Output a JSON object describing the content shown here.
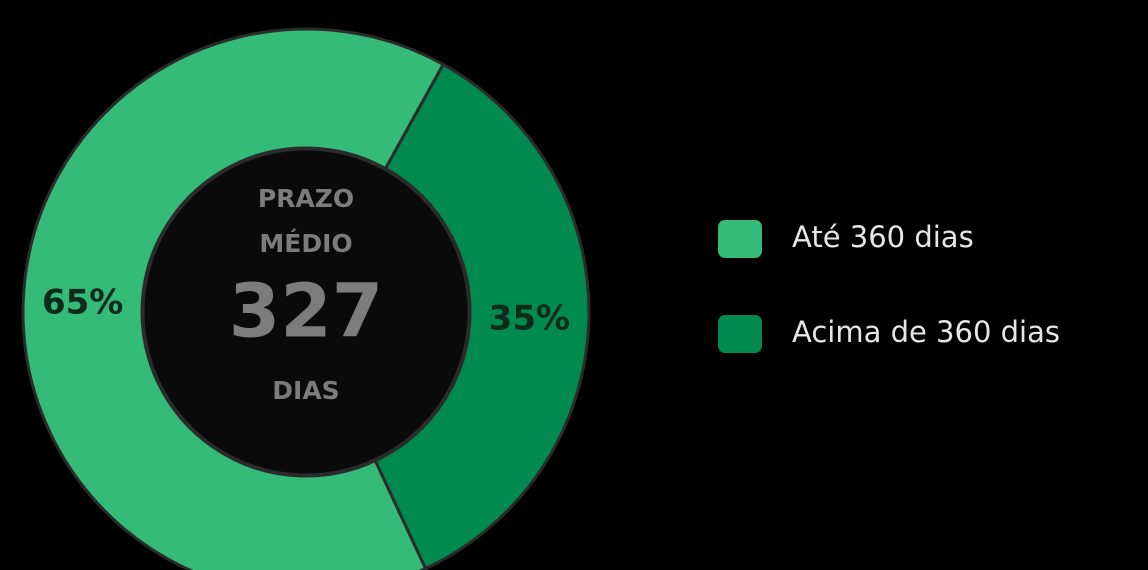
{
  "chart_data": {
    "type": "donut",
    "categories": [
      "Até 360 dias",
      "Acima de 360 dias"
    ],
    "values": [
      65,
      35
    ],
    "value_labels": [
      "65%",
      "35%"
    ],
    "colors": [
      "#33bb77",
      "#008a4f"
    ],
    "center_text": [
      "PRAZO",
      "MÉDIO",
      "327",
      "DIAS"
    ],
    "legend": "right"
  }
}
